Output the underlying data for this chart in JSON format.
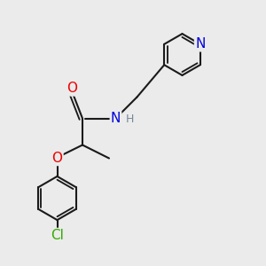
{
  "bg_color": "#ebebeb",
  "bond_color": "#1a1a1a",
  "bond_width": 1.5,
  "atom_colors": {
    "O_carbonyl": "#ee0000",
    "O_ether": "#ee0000",
    "N_pyridine": "#0000dd",
    "N_amide": "#0000dd",
    "Cl": "#33aa00",
    "H_on_N": "#778899"
  },
  "font_size_atoms": 11,
  "font_size_H": 9,
  "font_size_Cl": 11,
  "xlim": [
    0,
    10
  ],
  "ylim": [
    0,
    10
  ]
}
